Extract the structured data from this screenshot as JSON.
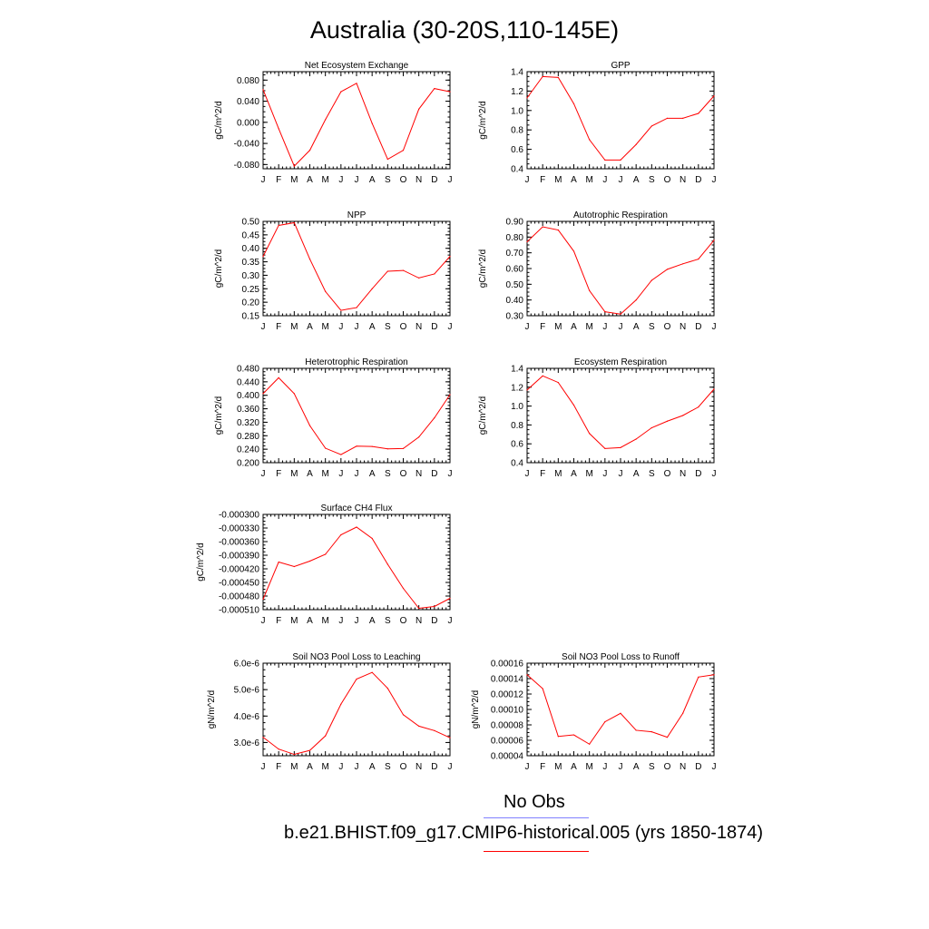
{
  "title": "Australia (30-20S,110-145E)",
  "colors": {
    "line": "#ff0000",
    "obs_line": "#8080ff",
    "axis": "#000000"
  },
  "legend": {
    "obs_label": "No Obs",
    "case_label": "b.e21.BHIST.f09_g17.CMIP6-historical.005 (yrs 1850-1874)"
  },
  "chart_data": [
    {
      "type": "line",
      "title": "Net Ecosystem Exchange",
      "ylabel": "gC/m^2/d",
      "categories": [
        "J",
        "F",
        "M",
        "A",
        "M",
        "J",
        "J",
        "A",
        "S",
        "O",
        "N",
        "D",
        "J"
      ],
      "values": [
        0.062,
        -0.012,
        -0.083,
        -0.053,
        0.005,
        0.058,
        0.074,
        -0.002,
        -0.07,
        -0.053,
        0.025,
        0.064,
        0.058
      ],
      "ylim": [
        -0.088,
        0.096
      ],
      "ticks": [
        "0.080",
        "0.040",
        "0.000",
        "-0.040",
        "-0.080"
      ],
      "tick_values": [
        0.08,
        0.04,
        0.0,
        -0.04,
        -0.08
      ],
      "minor_step": 0.01
    },
    {
      "type": "line",
      "title": "GPP",
      "ylabel": "gC/m^2/d",
      "categories": [
        "J",
        "F",
        "M",
        "A",
        "M",
        "J",
        "J",
        "A",
        "S",
        "O",
        "N",
        "D",
        "J"
      ],
      "values": [
        1.13,
        1.35,
        1.34,
        1.07,
        0.7,
        0.49,
        0.49,
        0.65,
        0.84,
        0.92,
        0.92,
        0.97,
        1.15
      ],
      "ylim": [
        0.4,
        1.4
      ],
      "ticks": [
        "1.4",
        "1.2",
        "1.0",
        "0.8",
        "0.6",
        "0.4"
      ],
      "tick_values": [
        1.4,
        1.2,
        1.0,
        0.8,
        0.6,
        0.4
      ],
      "minor_step": 0.05
    },
    {
      "type": "line",
      "title": "NPP",
      "ylabel": "gC/m^2/d",
      "categories": [
        "J",
        "F",
        "M",
        "A",
        "M",
        "J",
        "J",
        "A",
        "S",
        "O",
        "N",
        "D",
        "J"
      ],
      "values": [
        0.37,
        0.485,
        0.495,
        0.36,
        0.24,
        0.17,
        0.18,
        0.25,
        0.315,
        0.318,
        0.29,
        0.305,
        0.37
      ],
      "ylim": [
        0.15,
        0.5
      ],
      "ticks": [
        "0.50",
        "0.45",
        "0.40",
        "0.35",
        "0.30",
        "0.25",
        "0.20",
        "0.15"
      ],
      "tick_values": [
        0.5,
        0.45,
        0.4,
        0.35,
        0.3,
        0.25,
        0.2,
        0.15
      ],
      "minor_step": 0.0125
    },
    {
      "type": "line",
      "title": "Autotrophic Respiration",
      "ylabel": "gC/m^2/d",
      "categories": [
        "J",
        "F",
        "M",
        "A",
        "M",
        "J",
        "J",
        "A",
        "S",
        "O",
        "N",
        "D",
        "J"
      ],
      "values": [
        0.77,
        0.865,
        0.845,
        0.71,
        0.46,
        0.325,
        0.31,
        0.4,
        0.525,
        0.595,
        0.63,
        0.66,
        0.78
      ],
      "ylim": [
        0.3,
        0.9
      ],
      "ticks": [
        "0.90",
        "0.80",
        "0.70",
        "0.60",
        "0.50",
        "0.40",
        "0.30"
      ],
      "tick_values": [
        0.9,
        0.8,
        0.7,
        0.6,
        0.5,
        0.4,
        0.3
      ],
      "minor_step": 0.025
    },
    {
      "type": "line",
      "title": "Heterotrophic Respiration",
      "ylabel": "gC/m^2/d",
      "categories": [
        "J",
        "F",
        "M",
        "A",
        "M",
        "J",
        "J",
        "A",
        "S",
        "O",
        "N",
        "D",
        "J"
      ],
      "values": [
        0.405,
        0.452,
        0.405,
        0.31,
        0.243,
        0.224,
        0.249,
        0.248,
        0.241,
        0.242,
        0.276,
        0.333,
        0.402
      ],
      "ylim": [
        0.2,
        0.48
      ],
      "ticks": [
        "0.480",
        "0.440",
        "0.400",
        "0.360",
        "0.320",
        "0.280",
        "0.240",
        "0.200"
      ],
      "tick_values": [
        0.48,
        0.44,
        0.4,
        0.36,
        0.32,
        0.28,
        0.24,
        0.2
      ],
      "minor_step": 0.01
    },
    {
      "type": "line",
      "title": "Ecosystem Respiration",
      "ylabel": "gC/m^2/d",
      "categories": [
        "J",
        "F",
        "M",
        "A",
        "M",
        "J",
        "J",
        "A",
        "S",
        "O",
        "N",
        "D",
        "J"
      ],
      "values": [
        1.17,
        1.32,
        1.25,
        1.01,
        0.71,
        0.55,
        0.56,
        0.65,
        0.77,
        0.84,
        0.9,
        0.99,
        1.18
      ],
      "ylim": [
        0.4,
        1.4
      ],
      "ticks": [
        "1.4",
        "1.2",
        "1.0",
        "0.8",
        "0.6",
        "0.4"
      ],
      "tick_values": [
        1.4,
        1.2,
        1.0,
        0.8,
        0.6,
        0.4
      ],
      "minor_step": 0.05
    },
    {
      "type": "line",
      "title": "Surface CH4 Flux",
      "ylabel": "gC/m^2/d",
      "categories": [
        "J",
        "F",
        "M",
        "A",
        "M",
        "J",
        "J",
        "A",
        "S",
        "O",
        "N",
        "D",
        "J"
      ],
      "values": [
        -0.000487,
        -0.000405,
        -0.000415,
        -0.000403,
        -0.000388,
        -0.000345,
        -0.000328,
        -0.000353,
        -0.00041,
        -0.000463,
        -0.000507,
        -0.000503,
        -0.000485
      ],
      "ylim": [
        -0.00051,
        -0.0003
      ],
      "ticks": [
        "-0.000300",
        "-0.000330",
        "-0.000360",
        "-0.000390",
        "-0.000420",
        "-0.000450",
        "-0.000480",
        "-0.000510"
      ],
      "tick_values": [
        -0.0003,
        -0.00033,
        -0.00036,
        -0.00039,
        -0.00042,
        -0.00045,
        -0.00048,
        -0.00051
      ],
      "minor_step": 7.5e-06
    },
    {
      "type": "line",
      "title": "Soil NO3 Pool Loss to Leaching",
      "ylabel": "gN/m^2/d",
      "categories": [
        "J",
        "F",
        "M",
        "A",
        "M",
        "J",
        "J",
        "A",
        "S",
        "O",
        "N",
        "D",
        "J"
      ],
      "values": [
        3.2e-06,
        2.75e-06,
        2.55e-06,
        2.7e-06,
        3.25e-06,
        4.45e-06,
        5.4e-06,
        5.65e-06,
        5.05e-06,
        4.05e-06,
        3.62e-06,
        3.45e-06,
        3.18e-06
      ],
      "ylim": [
        2.5e-06,
        6e-06
      ],
      "ticks": [
        "6.0e-6",
        "5.0e-6",
        "4.0e-6",
        "3.0e-6"
      ],
      "tick_values": [
        6e-06,
        5e-06,
        4e-06,
        3e-06
      ],
      "minor_step": 2.5e-07
    },
    {
      "type": "line",
      "title": "Soil NO3 Pool Loss to Runoff",
      "ylabel": "gN/m^2/d",
      "categories": [
        "J",
        "F",
        "M",
        "A",
        "M",
        "J",
        "J",
        "A",
        "S",
        "O",
        "N",
        "D",
        "J"
      ],
      "values": [
        0.000145,
        0.000127,
        6.5e-05,
        6.7e-05,
        5.5e-05,
        8.4e-05,
        9.5e-05,
        7.3e-05,
        7.1e-05,
        6.4e-05,
        9.5e-05,
        0.000142,
        0.000145
      ],
      "ylim": [
        4e-05,
        0.00016
      ],
      "ticks": [
        "0.00016",
        "0.00014",
        "0.00012",
        "0.00010",
        "0.00008",
        "0.00006",
        "0.00004"
      ],
      "tick_values": [
        0.00016,
        0.00014,
        0.00012,
        0.0001,
        8e-05,
        6e-05,
        4e-05
      ],
      "minor_step": 5e-06
    }
  ]
}
